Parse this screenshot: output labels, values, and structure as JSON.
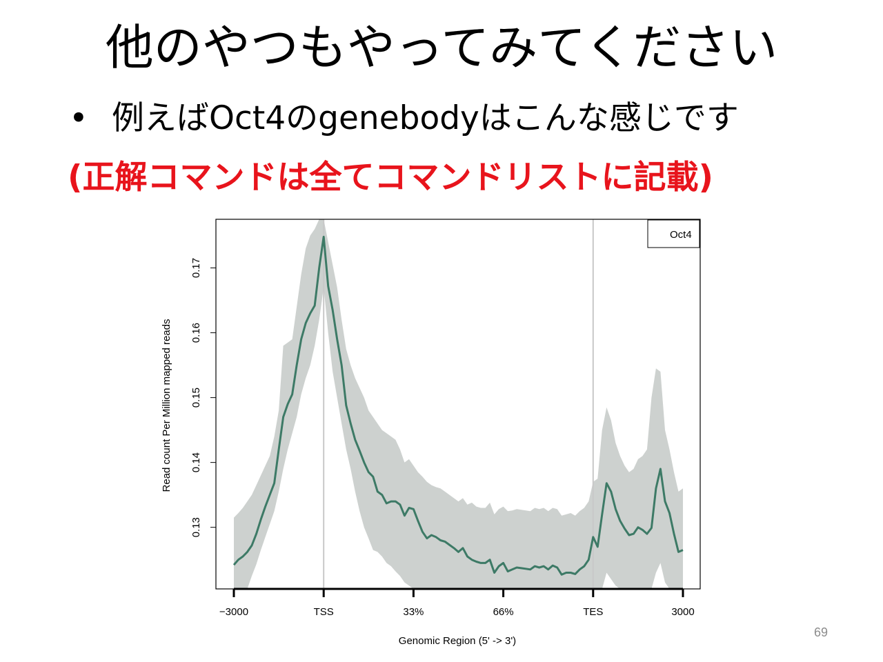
{
  "slide": {
    "title": "他のやつもやってみてください",
    "bullet_marker": "•",
    "bullet": "例えばOct4のgenebodyはこんな感じです",
    "note": "(正解コマンドは全てコマンドリストに記載)",
    "note_color": "#e8141c",
    "page_number": "69"
  },
  "chart_data": {
    "type": "line",
    "xlabel": "Genomic Region (5' -> 3')",
    "ylabel": "Read count Per Million mapped reads",
    "x_tick_labels": [
      "−3000",
      "TSS",
      "33%",
      "66%",
      "TES",
      "3000"
    ],
    "y_ticks": [
      0.13,
      0.14,
      0.15,
      0.16,
      0.17
    ],
    "y_tick_labels": [
      "0.13",
      "0.14",
      "0.15",
      "0.16",
      "0.17"
    ],
    "ylim": [
      0.1205,
      0.1775
    ],
    "xlim": [
      0,
      100
    ],
    "vertical_lines_at": [
      20,
      80
    ],
    "legend": {
      "labels": [
        "Oct4"
      ],
      "position": "top-right"
    },
    "colors": {
      "line": "#3d7a66",
      "band": "#cdd1cf",
      "vline": "#c8c8c8",
      "legend_text": "#2e8c78"
    },
    "series": [
      {
        "name": "Oct4",
        "x": [
          0,
          1,
          2,
          3,
          4,
          5,
          6,
          7,
          8,
          9,
          10,
          11,
          12,
          13,
          14,
          15,
          16,
          17,
          18,
          19,
          20,
          21,
          22,
          23,
          24,
          25,
          26,
          27,
          28,
          29,
          30,
          31,
          32,
          33,
          34,
          35,
          36,
          37,
          38,
          39,
          40,
          41,
          42,
          43,
          44,
          45,
          46,
          47,
          48,
          49,
          50,
          51,
          52,
          53,
          54,
          55,
          56,
          57,
          58,
          59,
          60,
          61,
          62,
          63,
          64,
          65,
          66,
          67,
          68,
          69,
          70,
          71,
          72,
          73,
          74,
          75,
          76,
          77,
          78,
          79,
          80,
          81,
          82,
          83,
          84,
          85,
          86,
          87,
          88,
          89,
          90,
          91,
          92,
          93,
          94,
          95,
          96,
          97,
          98,
          99,
          100
        ],
        "mean": [
          0.1242,
          0.125,
          0.1255,
          0.1262,
          0.1272,
          0.129,
          0.1312,
          0.1332,
          0.135,
          0.1368,
          0.142,
          0.147,
          0.149,
          0.1505,
          0.155,
          0.159,
          0.1615,
          0.163,
          0.1642,
          0.17,
          0.1748,
          0.1672,
          0.1635,
          0.159,
          0.155,
          0.1488,
          0.146,
          0.1435,
          0.1418,
          0.14,
          0.1385,
          0.1378,
          0.1355,
          0.135,
          0.1337,
          0.134,
          0.134,
          0.1335,
          0.1318,
          0.133,
          0.1328,
          0.131,
          0.1293,
          0.1283,
          0.1288,
          0.1285,
          0.128,
          0.1278,
          0.1273,
          0.1268,
          0.1262,
          0.1268,
          0.1255,
          0.125,
          0.1247,
          0.1245,
          0.1245,
          0.125,
          0.123,
          0.124,
          0.1245,
          0.1232,
          0.1235,
          0.1238,
          0.1237,
          0.1236,
          0.1235,
          0.124,
          0.1238,
          0.124,
          0.1235,
          0.1241,
          0.1238,
          0.1227,
          0.123,
          0.123,
          0.1228,
          0.1235,
          0.124,
          0.125,
          0.1285,
          0.127,
          0.132,
          0.1368,
          0.1355,
          0.1328,
          0.131,
          0.1298,
          0.1288,
          0.129,
          0.13,
          0.1296,
          0.129,
          0.1299,
          0.136,
          0.139,
          0.134,
          0.1322,
          0.129,
          0.1262,
          0.1265
        ],
        "band_low": [
          0.1165,
          0.1175,
          0.119,
          0.1203,
          0.1225,
          0.1243,
          0.1265,
          0.1285,
          0.1305,
          0.1325,
          0.1355,
          0.139,
          0.142,
          0.1445,
          0.147,
          0.1505,
          0.153,
          0.155,
          0.158,
          0.162,
          0.167,
          0.16,
          0.154,
          0.15,
          0.146,
          0.142,
          0.139,
          0.1355,
          0.1325,
          0.13,
          0.1283,
          0.1265,
          0.1262,
          0.1255,
          0.1245,
          0.124,
          0.1232,
          0.1225,
          0.1215,
          0.121,
          0.12,
          0.119,
          0.118,
          0.117,
          0.1162,
          0.1155,
          0.1148,
          0.114,
          0.1135,
          0.113,
          0.1125,
          0.112,
          0.1115,
          0.111,
          0.1105,
          0.11,
          0.1098,
          0.1096,
          0.1094,
          0.1092,
          0.109,
          0.109,
          0.109,
          0.1092,
          0.1094,
          0.1096,
          0.1098,
          0.11,
          0.1102,
          0.1104,
          0.1106,
          0.1108,
          0.111,
          0.1112,
          0.1115,
          0.1118,
          0.1122,
          0.1135,
          0.115,
          0.116,
          0.1175,
          0.1185,
          0.12,
          0.123,
          0.122,
          0.121,
          0.12,
          0.119,
          0.118,
          0.117,
          0.1175,
          0.1178,
          0.118,
          0.1185,
          0.123,
          0.1245,
          0.1215,
          0.1198,
          0.1175,
          0.116,
          0.1155
        ],
        "band_high": [
          0.1315,
          0.1322,
          0.133,
          0.134,
          0.135,
          0.1365,
          0.138,
          0.1395,
          0.141,
          0.144,
          0.148,
          0.158,
          0.1585,
          0.159,
          0.164,
          0.169,
          0.173,
          0.175,
          0.176,
          0.179,
          0.179,
          0.174,
          0.1705,
          0.167,
          0.162,
          0.1575,
          0.155,
          0.153,
          0.1515,
          0.15,
          0.148,
          0.147,
          0.146,
          0.145,
          0.1445,
          0.144,
          0.1435,
          0.142,
          0.14,
          0.1405,
          0.1395,
          0.1385,
          0.1378,
          0.137,
          0.1365,
          0.1362,
          0.136,
          0.1355,
          0.135,
          0.1345,
          0.134,
          0.1345,
          0.1335,
          0.1338,
          0.1332,
          0.133,
          0.133,
          0.1338,
          0.132,
          0.1328,
          0.1332,
          0.1325,
          0.1326,
          0.1328,
          0.1327,
          0.1326,
          0.1325,
          0.133,
          0.1328,
          0.133,
          0.1325,
          0.133,
          0.1328,
          0.1318,
          0.132,
          0.1322,
          0.1318,
          0.1325,
          0.133,
          0.134,
          0.137,
          0.1375,
          0.145,
          0.1485,
          0.1465,
          0.143,
          0.141,
          0.1395,
          0.1385,
          0.139,
          0.1405,
          0.141,
          0.142,
          0.15,
          0.1545,
          0.154,
          0.145,
          0.142,
          0.1385,
          0.1355,
          0.136
        ]
      }
    ]
  }
}
